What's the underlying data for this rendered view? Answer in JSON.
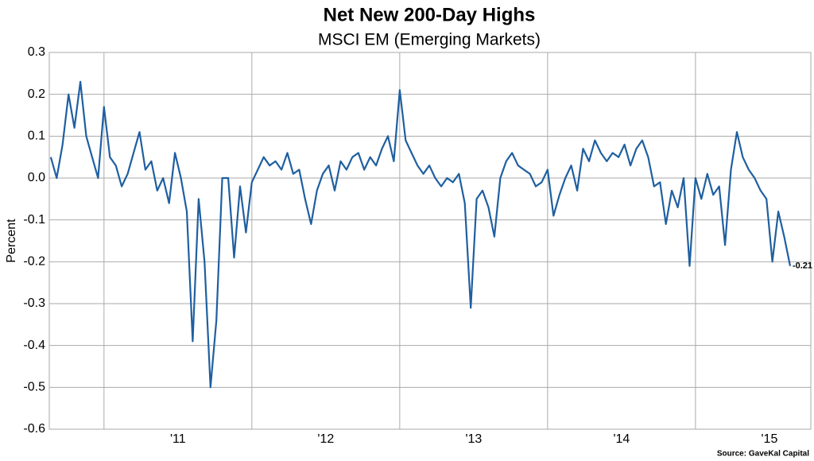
{
  "chart_data": {
    "type": "line",
    "title": "Net New 200-Day Highs",
    "subtitle": "MSCI EM (Emerging Markets)",
    "y_label": "Percent",
    "source": "Source: GaveKal Capital",
    "annotation": "-0.21",
    "grid": true,
    "xlim": [
      2010.63,
      2015.78
    ],
    "xticks": [
      {
        "value": 2011,
        "label": "'11"
      },
      {
        "value": 2012,
        "label": "'12"
      },
      {
        "value": 2013,
        "label": "'13"
      },
      {
        "value": 2014,
        "label": "'14"
      },
      {
        "value": 2015,
        "label": "'15"
      }
    ],
    "ylim": [
      -0.6,
      0.3
    ],
    "yticks": [
      0.3,
      0.2,
      0.1,
      {
        "value": 0,
        "label": "0.0"
      },
      -0.1,
      -0.2,
      -0.3,
      -0.4,
      -0.5,
      -0.6
    ],
    "x": [
      2010.64,
      2010.68,
      2010.72,
      2010.76,
      2010.8,
      2010.84,
      2010.88,
      2010.92,
      2010.96,
      2011.0,
      2011.04,
      2011.08,
      2011.12,
      2011.16,
      2011.2,
      2011.24,
      2011.28,
      2011.32,
      2011.36,
      2011.4,
      2011.44,
      2011.48,
      2011.52,
      2011.56,
      2011.6,
      2011.64,
      2011.68,
      2011.72,
      2011.76,
      2011.8,
      2011.84,
      2011.88,
      2011.92,
      2011.96,
      2012.0,
      2012.04,
      2012.08,
      2012.12,
      2012.16,
      2012.2,
      2012.24,
      2012.28,
      2012.32,
      2012.36,
      2012.4,
      2012.44,
      2012.48,
      2012.52,
      2012.56,
      2012.6,
      2012.64,
      2012.68,
      2012.72,
      2012.76,
      2012.8,
      2012.84,
      2012.88,
      2012.92,
      2012.96,
      2013.0,
      2013.04,
      2013.08,
      2013.12,
      2013.16,
      2013.2,
      2013.24,
      2013.28,
      2013.32,
      2013.36,
      2013.4,
      2013.44,
      2013.48,
      2013.52,
      2013.56,
      2013.6,
      2013.64,
      2013.68,
      2013.72,
      2013.76,
      2013.8,
      2013.84,
      2013.88,
      2013.92,
      2013.96,
      2014.0,
      2014.04,
      2014.08,
      2014.12,
      2014.16,
      2014.2,
      2014.24,
      2014.28,
      2014.32,
      2014.36,
      2014.4,
      2014.44,
      2014.48,
      2014.52,
      2014.56,
      2014.6,
      2014.64,
      2014.68,
      2014.72,
      2014.76,
      2014.8,
      2014.84,
      2014.88,
      2014.92,
      2014.96,
      2015.0,
      2015.04,
      2015.08,
      2015.12,
      2015.16,
      2015.2,
      2015.24,
      2015.28,
      2015.32,
      2015.36,
      2015.4,
      2015.44,
      2015.48,
      2015.52,
      2015.56,
      2015.6,
      2015.64
    ],
    "series": [
      {
        "color": "#1f5fa0",
        "values": [
          0.05,
          0.0,
          0.08,
          0.2,
          0.12,
          0.23,
          0.1,
          0.05,
          0.0,
          0.17,
          0.05,
          0.03,
          -0.02,
          0.01,
          0.06,
          0.11,
          0.02,
          0.04,
          -0.03,
          0.0,
          -0.06,
          0.06,
          0.0,
          -0.08,
          -0.39,
          -0.05,
          -0.2,
          -0.5,
          -0.34,
          0.0,
          0.0,
          -0.19,
          -0.02,
          -0.13,
          -0.01,
          0.02,
          0.05,
          0.03,
          0.04,
          0.02,
          0.06,
          0.01,
          0.02,
          -0.05,
          -0.11,
          -0.03,
          0.01,
          0.03,
          -0.03,
          0.04,
          0.02,
          0.05,
          0.06,
          0.02,
          0.05,
          0.03,
          0.07,
          0.1,
          0.04,
          0.21,
          0.09,
          0.06,
          0.03,
          0.01,
          0.03,
          0.0,
          -0.02,
          0.0,
          -0.01,
          0.01,
          -0.06,
          -0.31,
          -0.05,
          -0.03,
          -0.07,
          -0.14,
          0.0,
          0.04,
          0.06,
          0.03,
          0.02,
          0.01,
          -0.02,
          -0.01,
          0.02,
          -0.09,
          -0.04,
          0.0,
          0.03,
          -0.03,
          0.07,
          0.04,
          0.09,
          0.06,
          0.04,
          0.06,
          0.05,
          0.08,
          0.03,
          0.07,
          0.09,
          0.05,
          -0.02,
          -0.01,
          -0.11,
          -0.03,
          -0.07,
          0.0,
          -0.21,
          0.0,
          -0.05,
          0.01,
          -0.04,
          -0.02,
          -0.16,
          0.02,
          0.11,
          0.05,
          0.02,
          0.0,
          -0.03,
          -0.05,
          -0.2,
          -0.08,
          -0.14,
          -0.21
        ]
      }
    ]
  }
}
